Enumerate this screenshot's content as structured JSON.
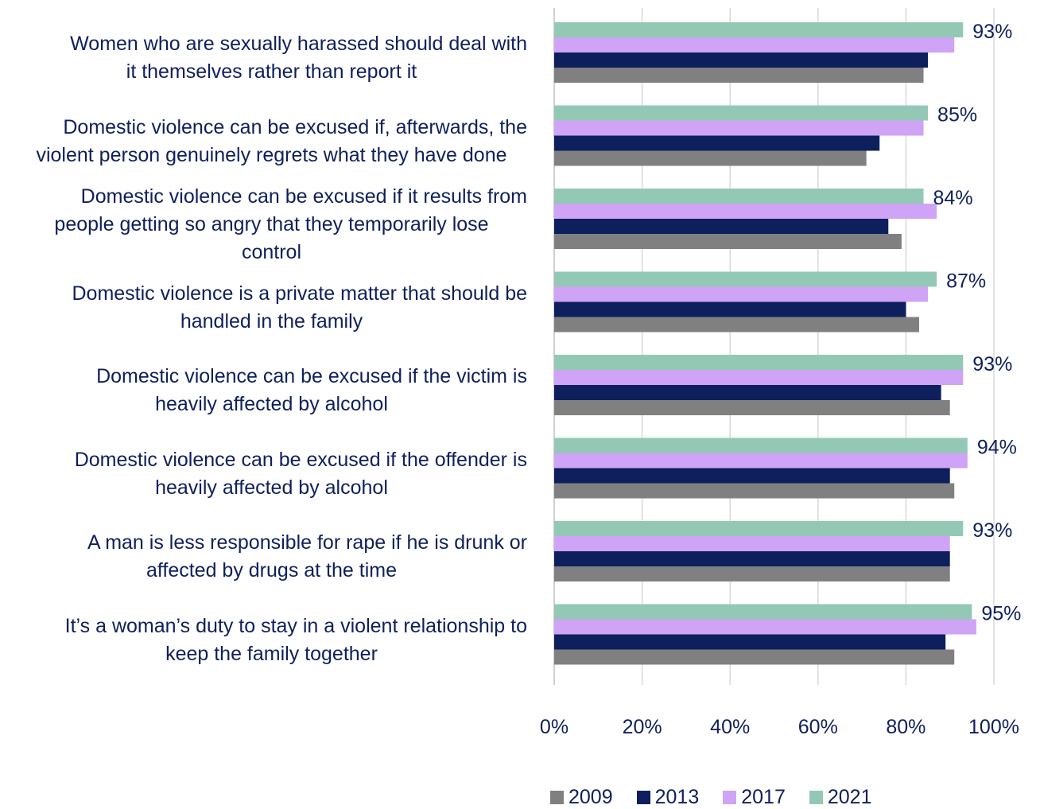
{
  "chart_data": {
    "type": "bar",
    "orientation": "horizontal",
    "categories": [
      [
        "Women who are sexually harassed should deal with",
        "it themselves rather than report it"
      ],
      [
        "Domestic violence can be excused if, afterwards, the",
        "violent person genuinely regrets what they have done"
      ],
      [
        "Domestic violence can be excused if it results from",
        "people getting so angry that they temporarily lose",
        "control"
      ],
      [
        "Domestic violence is a private matter that should be",
        "handled in the family"
      ],
      [
        "Domestic violence can be excused if the victim is",
        "heavily affected by alcohol"
      ],
      [
        "Domestic violence can be excused if the offender is",
        "heavily affected by alcohol"
      ],
      [
        "A man is less responsible for rape if he is drunk or",
        "affected by drugs at the time"
      ],
      [
        "It’s a woman’s duty to stay in a violent relationship to",
        "keep the family together"
      ]
    ],
    "series": [
      {
        "name": "2009",
        "color": "#808080",
        "values": [
          84,
          71,
          79,
          83,
          90,
          91,
          90,
          91
        ]
      },
      {
        "name": "2013",
        "color": "#0d1f5c",
        "values": [
          85,
          74,
          76,
          80,
          88,
          90,
          90,
          89
        ]
      },
      {
        "name": "2017",
        "color": "#cfa3f5",
        "values": [
          91,
          84,
          87,
          85,
          93,
          94,
          90,
          96
        ]
      },
      {
        "name": "2021",
        "color": "#93c9b4",
        "values": [
          93,
          85,
          84,
          87,
          93,
          94,
          93,
          95
        ]
      }
    ],
    "data_labels": [
      "93%",
      "85%",
      "84%",
      "87%",
      "93%",
      "94%",
      "93%",
      "95%"
    ],
    "xlim": [
      0,
      100
    ],
    "xticks": [
      "0%",
      "20%",
      "40%",
      "60%",
      "80%",
      "100%"
    ],
    "grid": true,
    "legend_position": "bottom"
  }
}
